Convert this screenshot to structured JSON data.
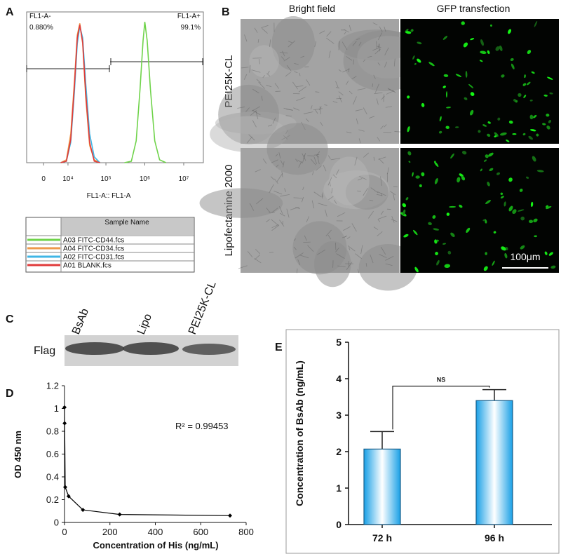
{
  "panel_labels": [
    "A",
    "B",
    "C",
    "D",
    "E"
  ],
  "chart_data": [
    {
      "type": "flow-histogram",
      "xlabel": "FL1-A:: FL1-A",
      "xscale": "biexponential",
      "xlim": [
        -5900,
        32000000
      ],
      "ylim": [
        0,
        100
      ],
      "xticks": [
        {
          "value": 0,
          "label": "0"
        },
        {
          "value": 10000,
          "label": "10⁴"
        },
        {
          "value": 100000,
          "label": "10⁵"
        },
        {
          "value": 1000000,
          "label": "10⁶"
        },
        {
          "value": 10000000,
          "label": "10⁷"
        }
      ],
      "gates": [
        {
          "name": "FL1-A-",
          "label": "0.880%",
          "xrange": [
            -5900,
            128000
          ]
        },
        {
          "name": "FL1-A+",
          "label": "99.1%",
          "xrange": [
            128000,
            32000000
          ]
        }
      ],
      "legend_header": "Sample Name",
      "series": [
        {
          "name": "A03 FITC-CD44.fcs",
          "color": "#6fd34a",
          "x": [
            300000,
            450000,
            600000,
            750000,
            900000,
            1000000,
            1150000,
            1400000,
            1800000,
            2400000,
            3500000
          ],
          "values": [
            0,
            1,
            15,
            50,
            84,
            97,
            84,
            50,
            15,
            2,
            0
          ]
        },
        {
          "name": "A04 FITC-CD34.fcs",
          "color": "#ee9a4a",
          "x": [
            6000,
            9000,
            12000,
            15000,
            18000,
            21000,
            25000,
            30000,
            38000,
            50000,
            70000
          ],
          "values": [
            0,
            2,
            20,
            55,
            88,
            96,
            82,
            45,
            12,
            2,
            0
          ]
        },
        {
          "name": "A02 FITC-CD31.fcs",
          "color": "#3fb6e6",
          "x": [
            6000,
            9000,
            12000,
            15000,
            18000,
            21000,
            25000,
            30000,
            38000,
            50000,
            70000
          ],
          "values": [
            0,
            1,
            14,
            48,
            82,
            94,
            86,
            55,
            20,
            4,
            0
          ]
        },
        {
          "name": "A01 BLANK.fcs",
          "color": "#e03a3a",
          "x": [
            6000,
            9000,
            12000,
            15000,
            18000,
            21000,
            25000,
            30000,
            38000,
            50000,
            70000
          ],
          "values": [
            0,
            1,
            16,
            52,
            86,
            95,
            83,
            48,
            14,
            1,
            0
          ]
        }
      ]
    },
    {
      "type": "line",
      "ylabel": "OD 450 nm",
      "xlabel": "Concentration of His (ng/mL)",
      "annotation": "R² = 0.99453",
      "x": [
        0,
        0.5,
        3,
        18,
        81,
        243,
        729
      ],
      "values": [
        1.01,
        0.87,
        0.31,
        0.23,
        0.11,
        0.07,
        0.06
      ],
      "color": "#000000",
      "xlim": [
        0,
        800
      ],
      "ylim": [
        0,
        1.2
      ],
      "xticks": [
        0,
        200,
        400,
        600,
        800
      ],
      "yticks": [
        0,
        0.2,
        0.4,
        0.6,
        0.8,
        1,
        1.2
      ]
    },
    {
      "type": "bar",
      "ylabel": "Concentration of BsAb (ng/mL)",
      "categories": [
        "72 h",
        "96 h"
      ],
      "values": [
        2.07,
        3.4
      ],
      "errors": [
        0.48,
        0.3
      ],
      "color": "#19a0e6",
      "ylim": [
        0,
        5
      ],
      "yticks": [
        0,
        1,
        2,
        3,
        4,
        5
      ],
      "annotation": "NS"
    }
  ],
  "microscopy": {
    "columns": [
      "Bright field",
      "GFP transfection"
    ],
    "rows": [
      "PEI25K-CL",
      "Lipofectamine 2000"
    ],
    "scale_bar": "100μm"
  },
  "western_blot": {
    "lanes": [
      "BsAb",
      "Lipo",
      "PEI25K-CL"
    ],
    "row_label": "Flag"
  }
}
